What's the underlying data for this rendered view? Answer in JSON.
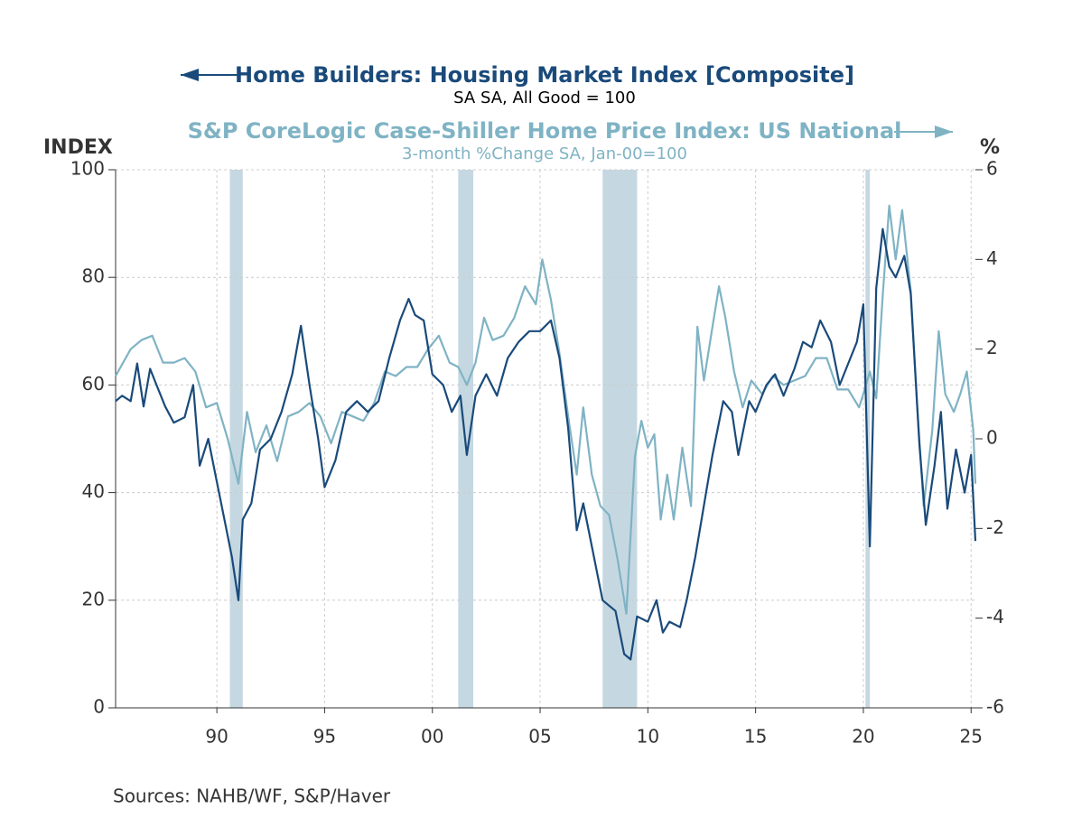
{
  "chart_data": {
    "type": "line",
    "title": "Home Builders: Housing Market Index [Composite]",
    "subtitle": "SA    SA, All Good = 100",
    "title2": "S&P CoreLogic Case-Shiller Home Price Index: US National",
    "subtitle2": "3-month %Change     SA, Jan-00=100",
    "ylabel": "INDEX",
    "y2label": "%",
    "source": "Sources:  NAHB/WF, S&P/Haver",
    "xlim": [
      1985.3,
      2025.2
    ],
    "xticks": [
      {
        "value": 1990,
        "label": "90"
      },
      {
        "value": 1995,
        "label": "95"
      },
      {
        "value": 2000,
        "label": "00"
      },
      {
        "value": 2005,
        "label": "05"
      },
      {
        "value": 2010,
        "label": "10"
      },
      {
        "value": 2015,
        "label": "15"
      },
      {
        "value": 2020,
        "label": "20"
      },
      {
        "value": 2025,
        "label": "25"
      }
    ],
    "ylim": [
      0,
      100
    ],
    "yticks": [
      0,
      20,
      40,
      60,
      80,
      100
    ],
    "y2lim": [
      -6,
      6
    ],
    "y2ticks": [
      -6,
      -4,
      -2,
      0,
      2,
      4,
      6
    ],
    "grid": true,
    "shaded_periods": [
      [
        1990.6,
        1991.2
      ],
      [
        2001.2,
        2001.9
      ],
      [
        2007.9,
        2009.5
      ],
      [
        2020.1,
        2020.3
      ]
    ],
    "shade_color": "#c5d8e2",
    "series": [
      {
        "name": "Home Builders: Housing Market Index [Composite]",
        "color": "#1a4a7a",
        "x": [
          1985.3,
          1985.6,
          1986.0,
          1986.3,
          1986.6,
          1986.9,
          1987.2,
          1987.6,
          1988.0,
          1988.5,
          1988.9,
          1989.2,
          1989.6,
          1990.0,
          1990.4,
          1990.7,
          1991.0,
          1991.2,
          1991.6,
          1992.0,
          1992.5,
          1993.0,
          1993.5,
          1993.9,
          1994.3,
          1994.7,
          1995.0,
          1995.5,
          1996.0,
          1996.5,
          1997.0,
          1997.5,
          1998.0,
          1998.5,
          1998.9,
          1999.2,
          1999.6,
          2000.0,
          2000.5,
          2000.9,
          2001.3,
          2001.6,
          2002.0,
          2002.5,
          2003.0,
          2003.5,
          2004.0,
          2004.5,
          2005.0,
          2005.5,
          2005.9,
          2006.3,
          2006.7,
          2007.0,
          2007.5,
          2007.9,
          2008.5,
          2008.9,
          2009.2,
          2009.5,
          2010.0,
          2010.4,
          2010.7,
          2011.0,
          2011.5,
          2011.8,
          2012.2,
          2012.7,
          2013.0,
          2013.5,
          2013.9,
          2014.2,
          2014.7,
          2015.0,
          2015.5,
          2015.9,
          2016.3,
          2016.8,
          2017.2,
          2017.6,
          2018.0,
          2018.5,
          2018.9,
          2019.3,
          2019.7,
          2020.0,
          2020.3,
          2020.6,
          2020.9,
          2021.2,
          2021.5,
          2021.9,
          2022.2,
          2022.6,
          2022.9,
          2023.3,
          2023.6,
          2023.9,
          2024.3,
          2024.7,
          2025.0,
          2025.2
        ],
        "values": [
          57,
          58,
          57,
          64,
          56,
          63,
          60,
          56,
          53,
          54,
          60,
          45,
          50,
          42,
          34,
          28,
          20,
          35,
          38,
          48,
          50,
          55,
          62,
          71,
          60,
          50,
          41,
          46,
          55,
          57,
          55,
          57,
          65,
          72,
          76,
          73,
          72,
          62,
          60,
          55,
          58,
          47,
          58,
          62,
          58,
          65,
          68,
          70,
          70,
          72,
          65,
          52,
          33,
          38,
          28,
          20,
          18,
          10,
          9,
          17,
          16,
          20,
          14,
          16,
          15,
          20,
          28,
          40,
          47,
          57,
          55,
          47,
          57,
          55,
          60,
          62,
          58,
          63,
          68,
          67,
          72,
          68,
          60,
          64,
          68,
          75,
          30,
          78,
          89,
          82,
          80,
          84,
          77,
          49,
          34,
          45,
          55,
          37,
          48,
          40,
          47,
          31
        ]
      },
      {
        "name": "S&P CoreLogic Case-Shiller Home Price Index: US National",
        "color": "#7fb3c4",
        "axis": "y2",
        "x": [
          1985.3,
          1986.0,
          1986.5,
          1987.0,
          1987.5,
          1988.0,
          1988.5,
          1989.0,
          1989.5,
          1990.0,
          1990.5,
          1991.0,
          1991.4,
          1991.8,
          1992.3,
          1992.8,
          1993.3,
          1993.8,
          1994.3,
          1994.8,
          1995.3,
          1995.8,
          1996.3,
          1996.8,
          1997.3,
          1997.8,
          1998.3,
          1998.8,
          1999.3,
          1999.8,
          2000.3,
          2000.8,
          2001.2,
          2001.6,
          2002.0,
          2002.4,
          2002.8,
          2003.3,
          2003.8,
          2004.3,
          2004.8,
          2005.1,
          2005.5,
          2005.9,
          2006.3,
          2006.7,
          2007.0,
          2007.4,
          2007.8,
          2008.2,
          2008.6,
          2009.0,
          2009.4,
          2009.7,
          2010.0,
          2010.3,
          2010.6,
          2010.9,
          2011.2,
          2011.6,
          2012.0,
          2012.3,
          2012.6,
          2013.0,
          2013.3,
          2013.6,
          2014.0,
          2014.4,
          2014.8,
          2015.3,
          2015.8,
          2016.3,
          2016.8,
          2017.3,
          2017.8,
          2018.3,
          2018.8,
          2019.3,
          2019.8,
          2020.0,
          2020.3,
          2020.6,
          2020.9,
          2021.2,
          2021.5,
          2021.8,
          2022.2,
          2022.5,
          2022.8,
          2023.2,
          2023.5,
          2023.8,
          2024.2,
          2024.5,
          2024.8,
          2025.1,
          2025.2
        ],
        "values": [
          1.4,
          2.0,
          2.2,
          2.3,
          1.7,
          1.7,
          1.8,
          1.5,
          0.7,
          0.8,
          0,
          -1.0,
          0.6,
          -0.3,
          0.3,
          -0.5,
          0.5,
          0.6,
          0.8,
          0.5,
          -0.1,
          0.6,
          0.5,
          0.4,
          0.8,
          1.5,
          1.4,
          1.6,
          1.6,
          2.0,
          2.3,
          1.7,
          1.6,
          1.2,
          1.7,
          2.7,
          2.2,
          2.3,
          2.7,
          3.4,
          3.0,
          4.0,
          3.1,
          1.9,
          0.5,
          -0.8,
          0.7,
          -0.8,
          -1.5,
          -1.7,
          -2.7,
          -3.9,
          -0.4,
          0.4,
          -0.2,
          0.1,
          -1.8,
          -0.8,
          -1.8,
          -0.2,
          -1.5,
          2.5,
          1.3,
          2.5,
          3.4,
          2.7,
          1.5,
          0.7,
          1.3,
          1.0,
          1.4,
          1.2,
          1.3,
          1.4,
          1.8,
          1.8,
          1.1,
          1.1,
          0.7,
          1.0,
          1.5,
          0.9,
          3.2,
          5.2,
          4.0,
          5.1,
          3.3,
          0.7,
          -1.5,
          0.2,
          2.4,
          1.0,
          0.6,
          1.0,
          1.5,
          0.2,
          -1.0
        ]
      }
    ]
  }
}
